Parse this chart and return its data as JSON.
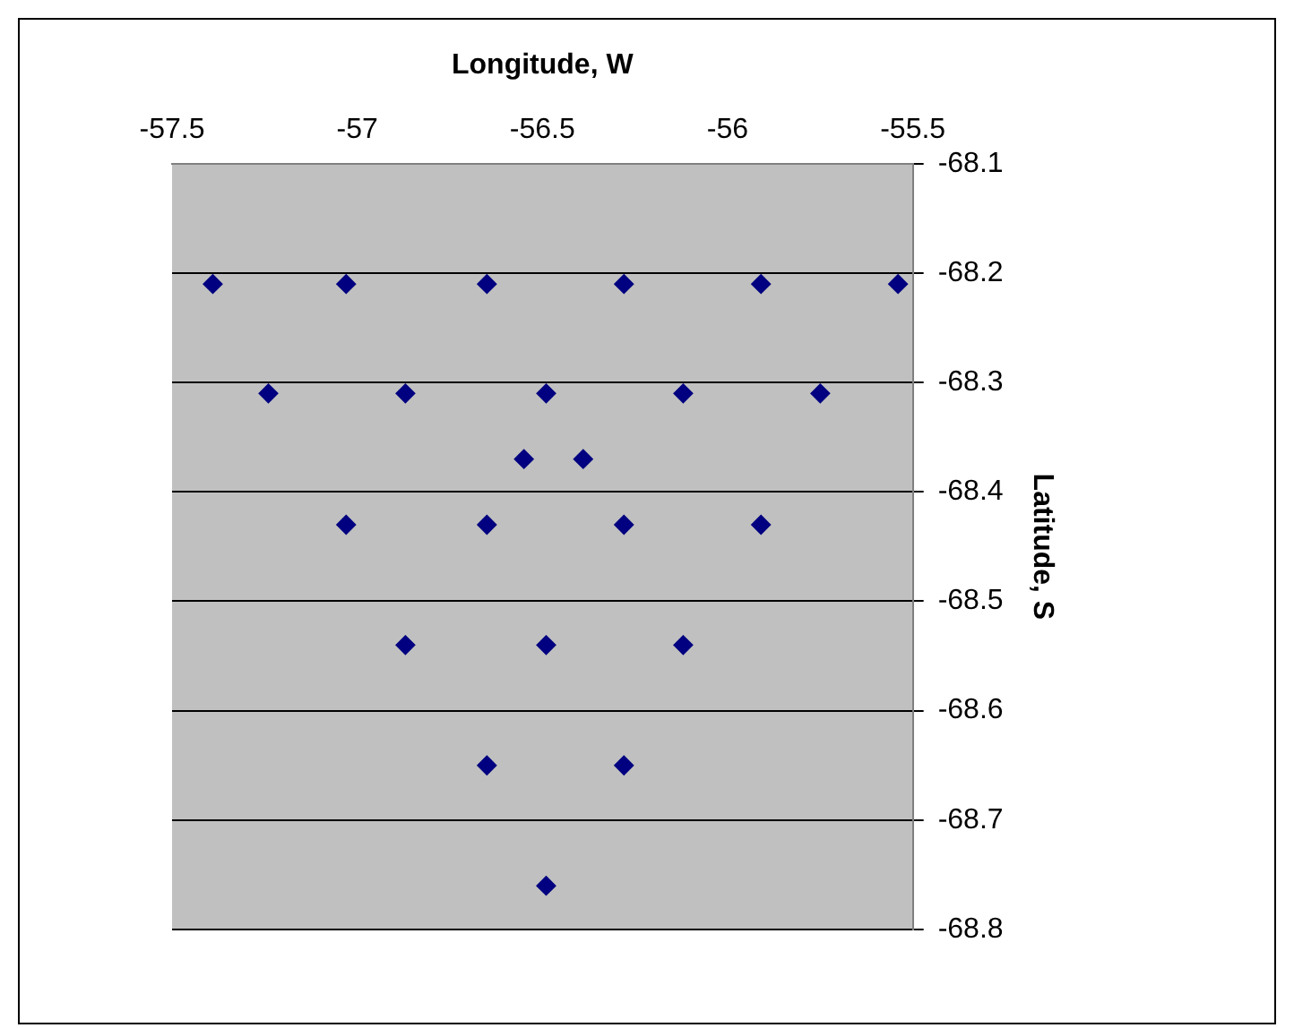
{
  "chart_data": {
    "type": "scatter",
    "xlabel": "Longitude, W",
    "ylabel": "Latitude, S",
    "x": [
      -57.39,
      -57.03,
      -56.65,
      -56.28,
      -55.91,
      -55.54,
      -57.24,
      -56.87,
      -56.49,
      -56.12,
      -55.75,
      -56.55,
      -56.39,
      -57.03,
      -56.65,
      -56.28,
      -55.91,
      -56.87,
      -56.49,
      -56.12,
      -56.65,
      -56.28,
      -56.49
    ],
    "series": [
      {
        "color": "#000080",
        "values": [
          -68.21,
          -68.21,
          -68.21,
          -68.21,
          -68.21,
          -68.21,
          -68.31,
          -68.31,
          -68.31,
          -68.31,
          -68.31,
          -68.37,
          -68.37,
          -68.43,
          -68.43,
          -68.43,
          -68.43,
          -68.54,
          -68.54,
          -68.54,
          -68.65,
          -68.65,
          -68.76
        ]
      }
    ],
    "xlim": [
      -57.5,
      -55.5
    ],
    "xticks": [
      -57.5,
      -57,
      -56.5,
      -56,
      -55.5
    ],
    "ylim": [
      -68.8,
      -68.1
    ],
    "yticks": [
      -68.8,
      -68.7,
      -68.6,
      -68.5,
      -68.4,
      -68.3,
      -68.2,
      -68.1
    ],
    "grid": "y",
    "legend": false,
    "marker": "diamond"
  }
}
